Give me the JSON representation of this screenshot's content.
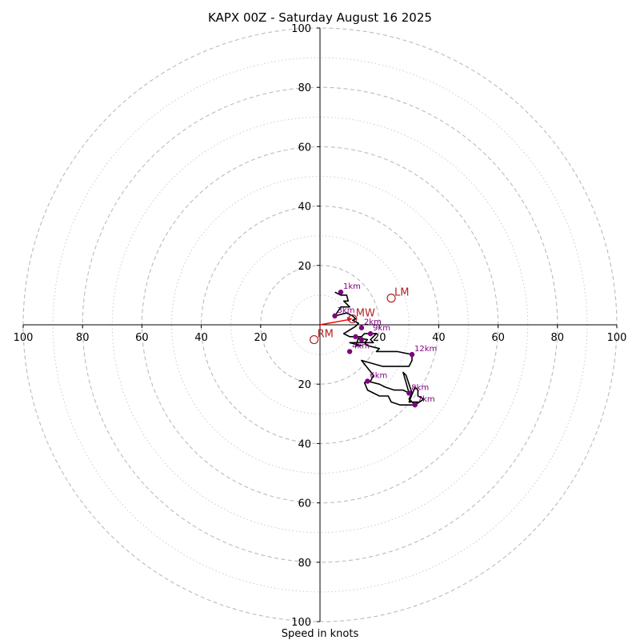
{
  "chart_data": {
    "type": "hodograph",
    "title": "KAPX 00Z - Saturday August 16 2025",
    "xlabel": "Speed in knots",
    "units": "knots",
    "range": [
      -100,
      100
    ],
    "rings_major": [
      20,
      40,
      60,
      80,
      100
    ],
    "rings_minor": [
      10,
      30,
      50,
      70,
      90
    ],
    "x_ticks": [
      "100",
      "80",
      "60",
      "40",
      "20",
      "20",
      "40",
      "60",
      "80",
      "100"
    ],
    "x_tick_values": [
      -100,
      -80,
      -60,
      -40,
      -20,
      20,
      40,
      60,
      80,
      100
    ],
    "y_ticks": [
      "100",
      "80",
      "60",
      "40",
      "20",
      "20",
      "40",
      "60",
      "80",
      "100"
    ],
    "y_tick_values": [
      100,
      80,
      60,
      40,
      20,
      -20,
      -40,
      -60,
      -80,
      -100
    ],
    "grid": true,
    "trace": {
      "name": "wind profile",
      "color": "#000000",
      "u": [
        5,
        7,
        9,
        9.5,
        8,
        10,
        7,
        5,
        9,
        11,
        12,
        11,
        13,
        12,
        8,
        10,
        14,
        15,
        17,
        19,
        17,
        18,
        13,
        10,
        14,
        12,
        13,
        16,
        15,
        16,
        20,
        19,
        21,
        26,
        31,
        31,
        30,
        21,
        14,
        18,
        17,
        16,
        20,
        22,
        25,
        28,
        30,
        28,
        29,
        31,
        30,
        32,
        35,
        33,
        33,
        32,
        30,
        33,
        32,
        27,
        24,
        23,
        20,
        16,
        15,
        17,
        16
      ],
      "v": [
        11,
        10,
        10,
        8,
        8,
        6,
        6,
        3,
        4,
        3,
        2,
        1.5,
        0.5,
        -0.5,
        -3,
        -4,
        -4,
        -3,
        -3,
        -3,
        -5,
        -6,
        -6,
        -6,
        -7,
        -7,
        -4.5,
        -5,
        -6,
        -7,
        -8,
        -9,
        -9,
        -9,
        -10,
        -12,
        -14,
        -14,
        -12,
        -17,
        -19,
        -19,
        -20,
        -21,
        -22,
        -22,
        -23,
        -16,
        -17,
        -23,
        -25,
        -27,
        -25,
        -24,
        -22,
        -21,
        -26,
        -26,
        -27,
        -27,
        -26,
        -24,
        -24,
        -22,
        -19.5,
        -19,
        -19
      ]
    },
    "height_markers": [
      {
        "label": "1km",
        "u": 7,
        "v": 11
      },
      {
        "label": "3km",
        "u": 5,
        "v": 3
      },
      {
        "label": "2km",
        "u": 14,
        "v": -1
      },
      {
        "label": "4km",
        "u": 10,
        "v": -9
      },
      {
        "label": "9km",
        "u": 17,
        "v": -3
      },
      {
        "label": "6km",
        "u": 16,
        "v": -19
      },
      {
        "label": "12km",
        "u": 31,
        "v": -10
      },
      {
        "label": "8km",
        "u": 30,
        "v": -23
      },
      {
        "label": "7km",
        "u": 32,
        "v": -27
      }
    ],
    "unlabeled_markers": [
      {
        "u": 12,
        "v": -4
      },
      {
        "u": 14,
        "v": -5
      }
    ],
    "storm_motion": [
      {
        "label": "LM",
        "u": 24,
        "v": 9
      },
      {
        "label": "MW",
        "u": 11,
        "v": 2
      },
      {
        "label": "RM",
        "u": -2,
        "v": -5
      }
    ],
    "mean_wind_vector": {
      "u": 11,
      "v": 2,
      "color": "#ff0000"
    }
  }
}
